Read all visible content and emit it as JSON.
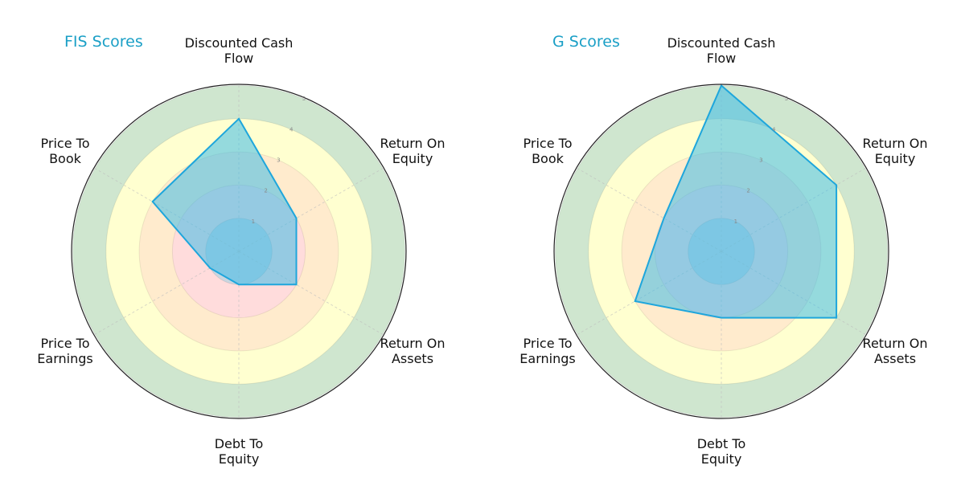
{
  "chart_data": [
    {
      "type": "radar",
      "title": "FIS Scores",
      "categories": [
        "Discounted Cash Flow",
        "Return On Equity",
        "Return On Assets",
        "Debt To Equity",
        "Price To Earnings",
        "Price To Book"
      ],
      "values": [
        4,
        2,
        2,
        1,
        1,
        3
      ],
      "rlim": [
        0,
        5
      ],
      "rticks": [
        1,
        2,
        3,
        4,
        5
      ],
      "grid": true
    },
    {
      "type": "radar",
      "title": "G Scores",
      "categories": [
        "Discounted Cash Flow",
        "Return On Equity",
        "Return On Assets",
        "Debt To Equity",
        "Price To Earnings",
        "Price To Book"
      ],
      "values": [
        5,
        4,
        4,
        2,
        3,
        2
      ],
      "rlim": [
        0,
        5
      ],
      "rticks": [
        1,
        2,
        3,
        4,
        5
      ],
      "grid": true
    }
  ],
  "charts": [
    {
      "title": "FIS Scores",
      "labels": [
        "Discounted Cash\nFlow",
        "Return On\nEquity",
        "Return On\nAssets",
        "Debt To\nEquity",
        "Price To\nEarnings",
        "Price To\nBook"
      ]
    },
    {
      "title": "G Scores",
      "labels": [
        "Discounted Cash\nFlow",
        "Return On\nEquity",
        "Return On\nAssets",
        "Debt To\nEquity",
        "Price To\nEarnings",
        "Price To\nBook"
      ]
    }
  ],
  "colors": {
    "title": "#1a9fc6",
    "ring_0_1": "#c9d6e0",
    "ring_1_2": "#ffdcdc",
    "ring_2_3": "#ffebcd",
    "ring_3_4": "#ffffd0",
    "ring_4_5": "#cfe6cf",
    "polygon_fill": "#3ebce8",
    "polygon_stroke": "#1ea6dc",
    "outer_circle": "#222222",
    "grid": "#bdbdbd",
    "tick_label": "#888888"
  }
}
